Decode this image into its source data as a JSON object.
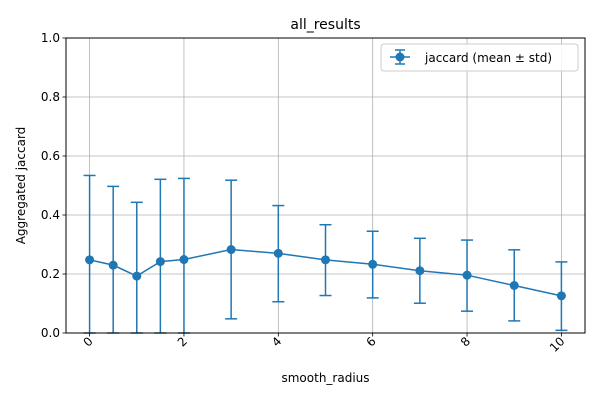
{
  "chart_data": {
    "type": "line",
    "title": "all_results",
    "xlabel": "smooth_radius",
    "ylabel": "Aggregated jaccard",
    "xlim": [
      -0.5,
      10.5
    ],
    "ylim": [
      0.0,
      1.0
    ],
    "x_ticks": [
      0,
      2,
      4,
      6,
      8,
      10
    ],
    "x_tick_labels": [
      "0",
      "2",
      "4",
      "6",
      "8",
      "10"
    ],
    "y_ticks": [
      0.0,
      0.2,
      0.4,
      0.6,
      0.8,
      1.0
    ],
    "y_tick_labels": [
      "0.0",
      "0.2",
      "0.4",
      "0.6",
      "0.8",
      "1.0"
    ],
    "grid": true,
    "legend_position": "top-right",
    "series": [
      {
        "name": "jaccard (mean ± std)",
        "color": "#1f77b4",
        "marker": "circle",
        "error_bars": true,
        "x": [
          0,
          0.5,
          1,
          1.5,
          2,
          3,
          4,
          5,
          6,
          7,
          8,
          9,
          10
        ],
        "y": [
          0.248,
          0.23,
          0.193,
          0.242,
          0.249,
          0.283,
          0.27,
          0.248,
          0.233,
          0.211,
          0.196,
          0.161,
          0.126
        ],
        "lower": [
          0.0,
          0.0,
          0.0,
          0.0,
          0.0,
          0.048,
          0.106,
          0.127,
          0.119,
          0.101,
          0.074,
          0.041,
          0.009
        ],
        "upper": [
          0.534,
          0.497,
          0.443,
          0.521,
          0.524,
          0.518,
          0.432,
          0.367,
          0.345,
          0.321,
          0.315,
          0.282,
          0.241
        ]
      }
    ]
  }
}
